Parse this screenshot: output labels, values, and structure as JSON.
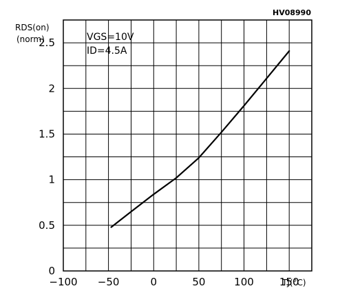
{
  "figure_code": "HV08990",
  "chart_data": {
    "type": "line",
    "ylabel_main": "RDS(on)",
    "ylabel_sub": "(norm)",
    "xlabel": "TJ(°C)",
    "annotations": [
      "VGS=10V",
      "ID=4.5A"
    ],
    "xlim": [
      -100,
      175
    ],
    "ylim": [
      0,
      2.75
    ],
    "x_ticks": [
      -100,
      -50,
      0,
      50,
      100,
      150
    ],
    "x_tick_labels": [
      "−100",
      "−50",
      "0",
      "50",
      "100",
      "150"
    ],
    "y_ticks": [
      0,
      0.5,
      1,
      1.5,
      2,
      2.5
    ],
    "y_tick_labels": [
      "0",
      "0.5",
      "1",
      "1.5",
      "2",
      "2.5"
    ],
    "x_minor_step": 25,
    "y_minor_step": 0.25,
    "grid": true,
    "series": [
      {
        "x": [
          -47,
          -25,
          0,
          25,
          50,
          75,
          100,
          125,
          150
        ],
        "y": [
          0.48,
          0.65,
          0.84,
          1.02,
          1.24,
          1.52,
          1.81,
          2.11,
          2.41
        ]
      }
    ]
  }
}
